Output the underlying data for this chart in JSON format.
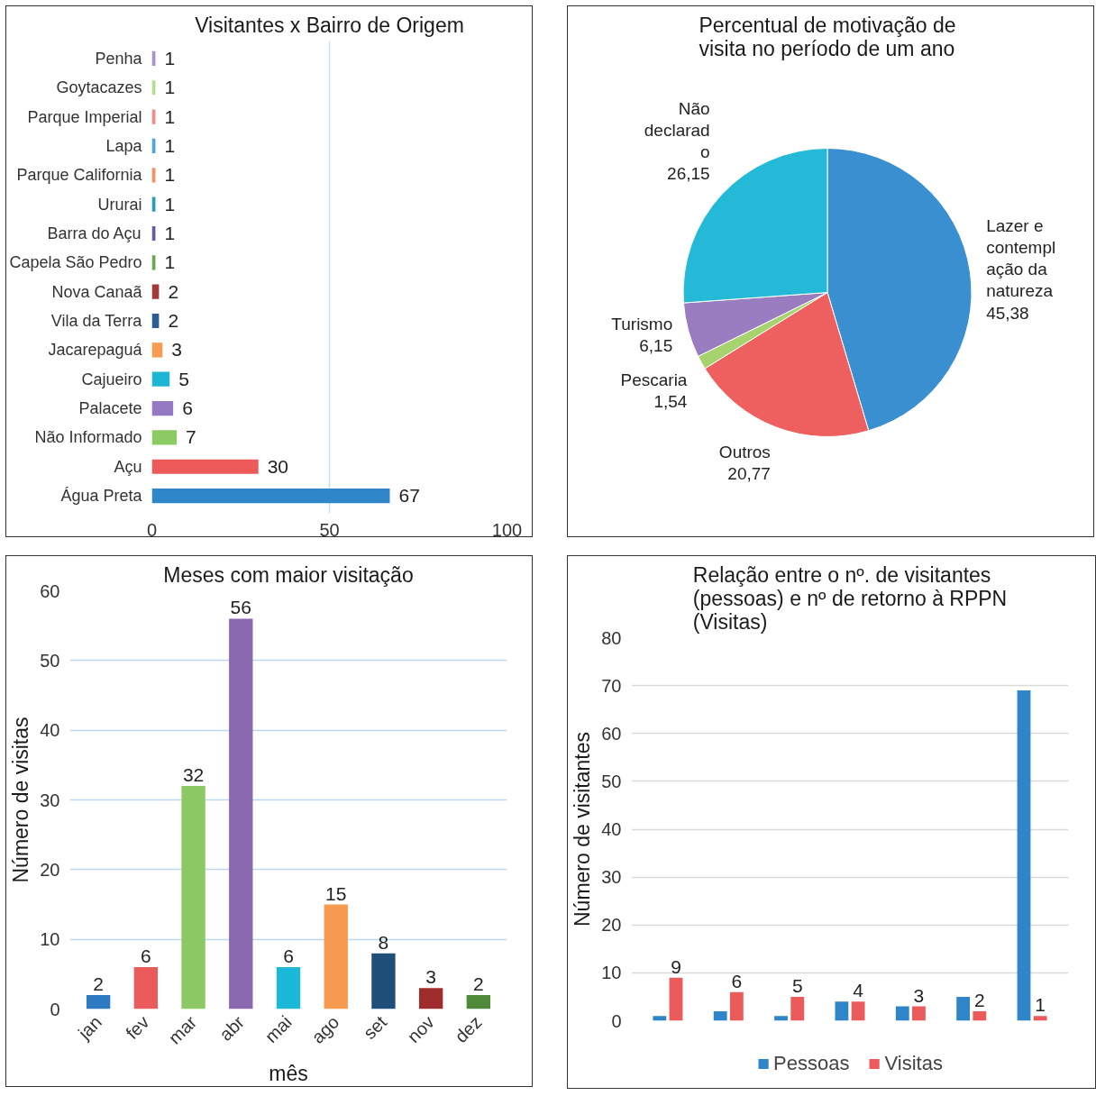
{
  "chart_data": [
    {
      "type": "bar",
      "orientation": "horizontal",
      "title": "Visitantes x Bairro de Origem",
      "categories": [
        "Penha",
        "Goytacazes",
        "Parque Imperial",
        "Lapa",
        "Parque California",
        "Ururai",
        "Barra do Açu",
        "Capela São Pedro",
        "Nova Canaã",
        "Vila da Terra",
        "Jacarepaguá",
        "Cajueiro",
        "Palacete",
        "Não Informado",
        "Açu",
        "Água Preta"
      ],
      "values": [
        1,
        1,
        1,
        1,
        1,
        1,
        1,
        1,
        2,
        2,
        3,
        5,
        6,
        7,
        30,
        67
      ],
      "colors": [
        "#a993cf",
        "#b7dc8f",
        "#f28a8a",
        "#4fa3e0",
        "#f59064",
        "#2a9db5",
        "#6b5b9e",
        "#6aa84f",
        "#a33a3a",
        "#2a5d91",
        "#f79a52",
        "#1fb6d6",
        "#9579c2",
        "#8ccb63",
        "#ee5a5a",
        "#2f86c9"
      ],
      "xlim": [
        0,
        100
      ],
      "xticks": [
        0,
        50,
        100
      ],
      "grid": "x",
      "data_labels": true
    },
    {
      "type": "pie",
      "title": "Percentual de motivação de visita no período de um ano",
      "categories": [
        "Lazer e contemplação da natureza",
        "Outros",
        "Pescaria",
        "Turismo",
        "Não declarado"
      ],
      "values": [
        45.38,
        20.77,
        1.54,
        6.15,
        26.15
      ],
      "value_labels": [
        "45,38",
        "20,77",
        "1,54",
        "6,15",
        "26,15"
      ],
      "colors": [
        "#3a8fd0",
        "#ee5f5f",
        "#a6d36e",
        "#9a7cc0",
        "#25b9d8"
      ]
    },
    {
      "type": "bar",
      "title": "Meses com maior visitação",
      "xlabel": "mês",
      "ylabel": "Número de visitas",
      "categories": [
        "jan",
        "fev",
        "mar",
        "abr",
        "mai",
        "ago",
        "set",
        "nov",
        "dez"
      ],
      "values": [
        2,
        6,
        32,
        56,
        6,
        15,
        8,
        3,
        2
      ],
      "colors": [
        "#2e7bc4",
        "#ec5b5b",
        "#8cc864",
        "#8a68b0",
        "#1cb8d8",
        "#f59a50",
        "#1f4e79",
        "#a02b2b",
        "#4e8a3a"
      ],
      "ylim": [
        0,
        60
      ],
      "yticks": [
        0,
        10,
        20,
        30,
        40,
        50,
        60
      ],
      "grid": "y",
      "data_labels": true
    },
    {
      "type": "bar",
      "title": "Relação entre o nº. de visitantes (pessoas) e nº de retorno à RPPN (Visitas)",
      "ylabel": "Número de visitantes",
      "categories": [
        null,
        null,
        null,
        null,
        null,
        null,
        null
      ],
      "series": [
        {
          "name": "Pessoas",
          "color": "#2e86c8",
          "values": [
            1,
            2,
            1,
            4,
            3,
            5,
            69
          ]
        },
        {
          "name": "Visitas",
          "color": "#ec5b5b",
          "values": [
            9,
            6,
            5,
            4,
            3,
            2,
            1
          ],
          "value_labels": [
            "9",
            "6",
            "5",
            "4",
            "3",
            "2",
            "1"
          ]
        }
      ],
      "ylim": [
        0,
        80
      ],
      "yticks": [
        0,
        10,
        20,
        30,
        40,
        50,
        60,
        70,
        80
      ],
      "grid": "y",
      "legend": "bottom"
    }
  ]
}
